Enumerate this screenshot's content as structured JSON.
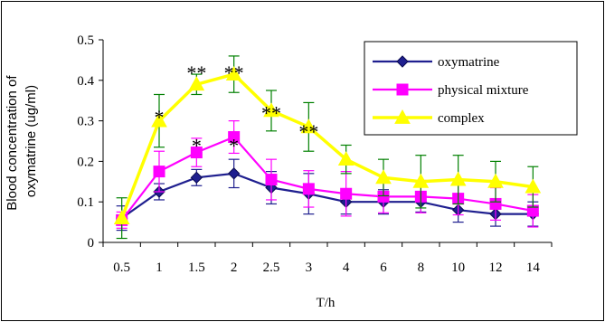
{
  "chart_data": {
    "type": "line",
    "title": "",
    "xlabel": "T/h",
    "ylabel_lines": [
      "Blood concentration of",
      "oxymatrine (ug/ml)"
    ],
    "categories": [
      "0.5",
      "1",
      "1.5",
      "2",
      "2.5",
      "3",
      "4",
      "6",
      "8",
      "10",
      "12",
      "14"
    ],
    "ylim": [
      0,
      0.5
    ],
    "yticks": [
      "0",
      "0.1",
      "0.2",
      "0.3",
      "0.4",
      "0.5"
    ],
    "grid": false,
    "legend_position": "top-right",
    "series": [
      {
        "name": "oxymatrine",
        "color": "#1f1f8f",
        "marker": "diamond",
        "values": [
          0.06,
          0.125,
          0.16,
          0.17,
          0.135,
          0.12,
          0.1,
          0.1,
          0.1,
          0.08,
          0.07,
          0.07
        ],
        "errors": [
          0.03,
          0.02,
          0.02,
          0.035,
          0.04,
          0.05,
          0.03,
          0.03,
          0.025,
          0.03,
          0.03,
          0.03
        ]
      },
      {
        "name": "physical mixture",
        "color": "#ff00ff",
        "marker": "square",
        "values": [
          0.055,
          0.175,
          0.222,
          0.26,
          0.155,
          0.132,
          0.12,
          0.113,
          0.113,
          0.108,
          0.095,
          0.078
        ],
        "errors": [
          0.02,
          0.05,
          0.035,
          0.04,
          0.05,
          0.045,
          0.055,
          0.04,
          0.04,
          0.04,
          0.04,
          0.04
        ]
      },
      {
        "name": "complex",
        "color": "#ffff00",
        "error_color": "#008000",
        "marker": "triangle",
        "values": [
          0.06,
          0.3,
          0.39,
          0.415,
          0.325,
          0.285,
          0.205,
          0.16,
          0.15,
          0.155,
          0.15,
          0.137
        ],
        "errors": [
          0.05,
          0.065,
          0.025,
          0.045,
          0.05,
          0.06,
          0.035,
          0.045,
          0.065,
          0.06,
          0.05,
          0.05
        ]
      }
    ],
    "annotations": [
      {
        "text": "*",
        "x": "1",
        "y": 0.31
      },
      {
        "text": "**",
        "x": "1.5",
        "y": 0.42
      },
      {
        "text": "**",
        "x": "2",
        "y": 0.42
      },
      {
        "text": "**",
        "x": "2.5",
        "y": 0.32
      },
      {
        "text": "**",
        "x": "3",
        "y": 0.275
      },
      {
        "text": "*",
        "x": "1.5",
        "y": 0.24
      },
      {
        "text": "*",
        "x": "2",
        "y": 0.24
      }
    ]
  }
}
